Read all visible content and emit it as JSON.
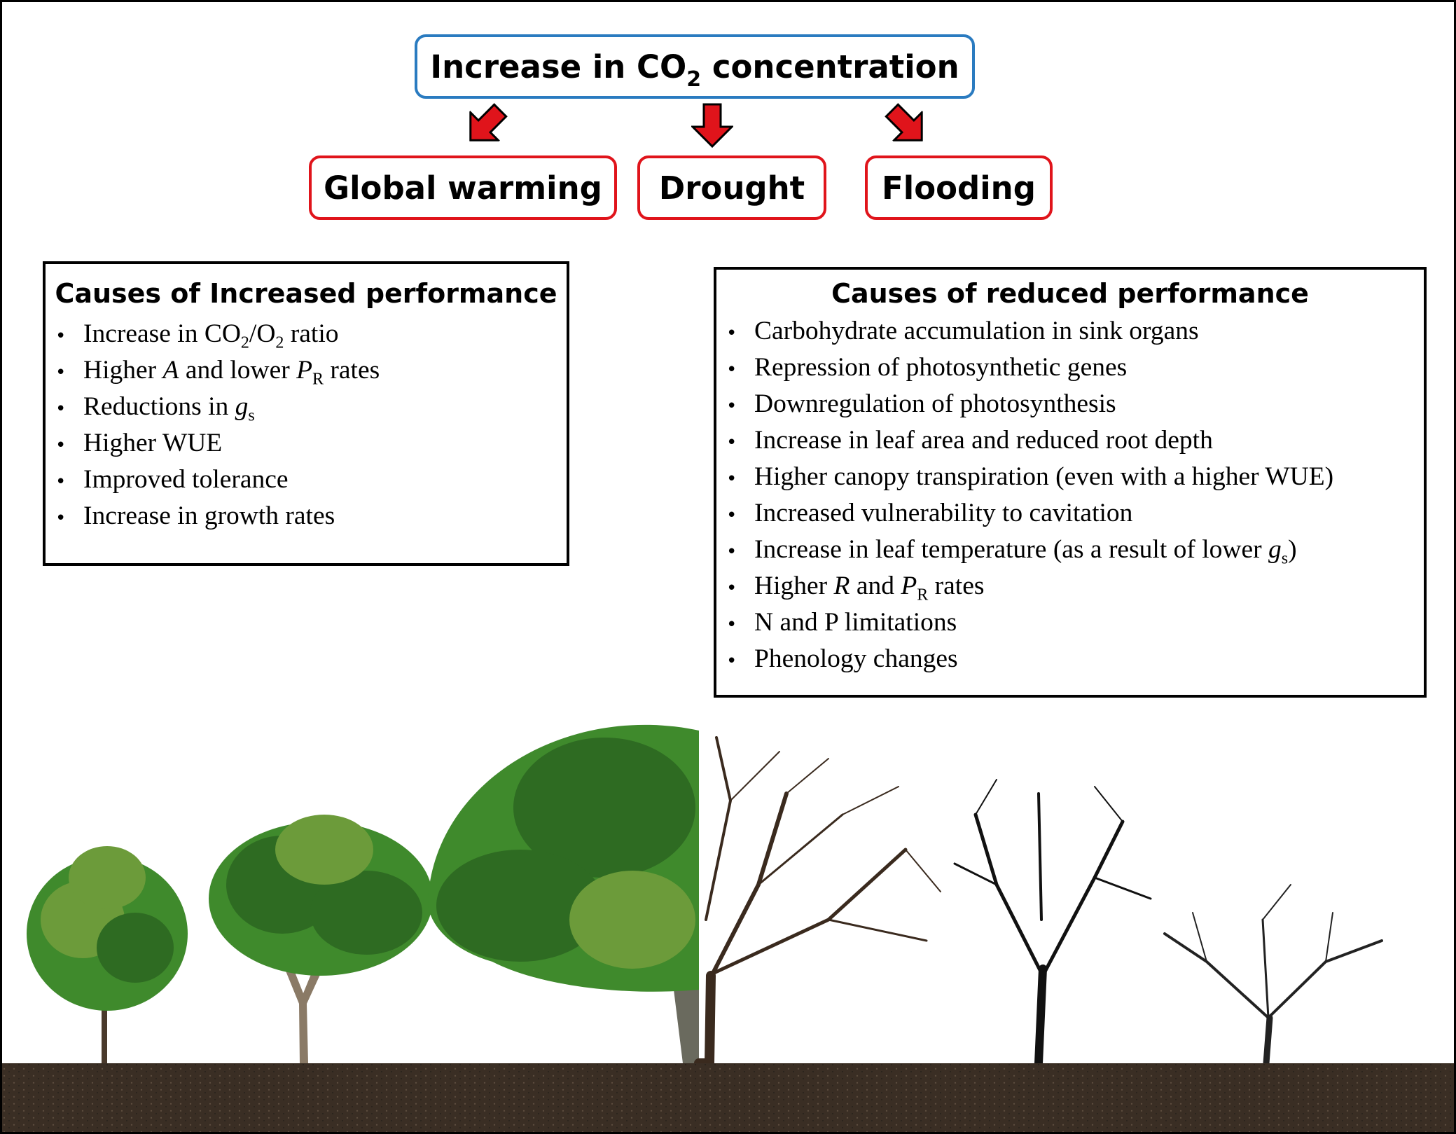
{
  "top_box": {
    "label_pre": "Increase in CO",
    "label_sub": "2",
    "label_post": " concentration"
  },
  "effects": [
    {
      "label": "Global warming"
    },
    {
      "label": "Drought"
    },
    {
      "label": "Flooding"
    }
  ],
  "increased_panel": {
    "title": "Causes of Increased performance",
    "bullet": "•",
    "items": {
      "i0": {
        "a": "Increase in CO",
        "b": "2",
        "c": "/O",
        "d": "2",
        "e": " ratio"
      },
      "i1": {
        "a": "Higher ",
        "b": "A",
        "c": " and lower ",
        "d": "P",
        "e": "R",
        "f": " rates"
      },
      "i2": {
        "a": "Reductions in ",
        "b": "g",
        "c": "s"
      },
      "i3": "Higher WUE",
      "i4": "Improved tolerance",
      "i5": "Increase in growth rates"
    }
  },
  "reduced_panel": {
    "title": "Causes of reduced performance",
    "bullet": "•",
    "items": {
      "r0": "Carbohydrate accumulation in sink organs",
      "r1": "Repression of photosynthetic genes",
      "r2": "Downregulation of photosynthesis",
      "r3": "Increase in leaf area and reduced root depth",
      "r4": "Higher canopy transpiration (even with a higher WUE)",
      "r5": "Increased vulnerability to cavitation",
      "r6": {
        "a": "Increase in leaf temperature (as a result of lower ",
        "b": "g",
        "c": "s",
        "d": ")"
      },
      "r7": {
        "a": "Higher ",
        "b": "R",
        "c": " and ",
        "d": "P",
        "e": "R",
        "f": " rates"
      },
      "r8": "N and P limitations",
      "r9": "Phenology changes"
    }
  },
  "colors": {
    "top_border": "#2a7bc0",
    "effect_border": "#e0141b",
    "arrow_fill": "#e0141b",
    "foliage_dark": "#2e6b22",
    "foliage_mid": "#3f8a2c",
    "foliage_light": "#6c9b3a",
    "bare_branches": "#3a2a1e",
    "soil": "#3a2e24"
  }
}
